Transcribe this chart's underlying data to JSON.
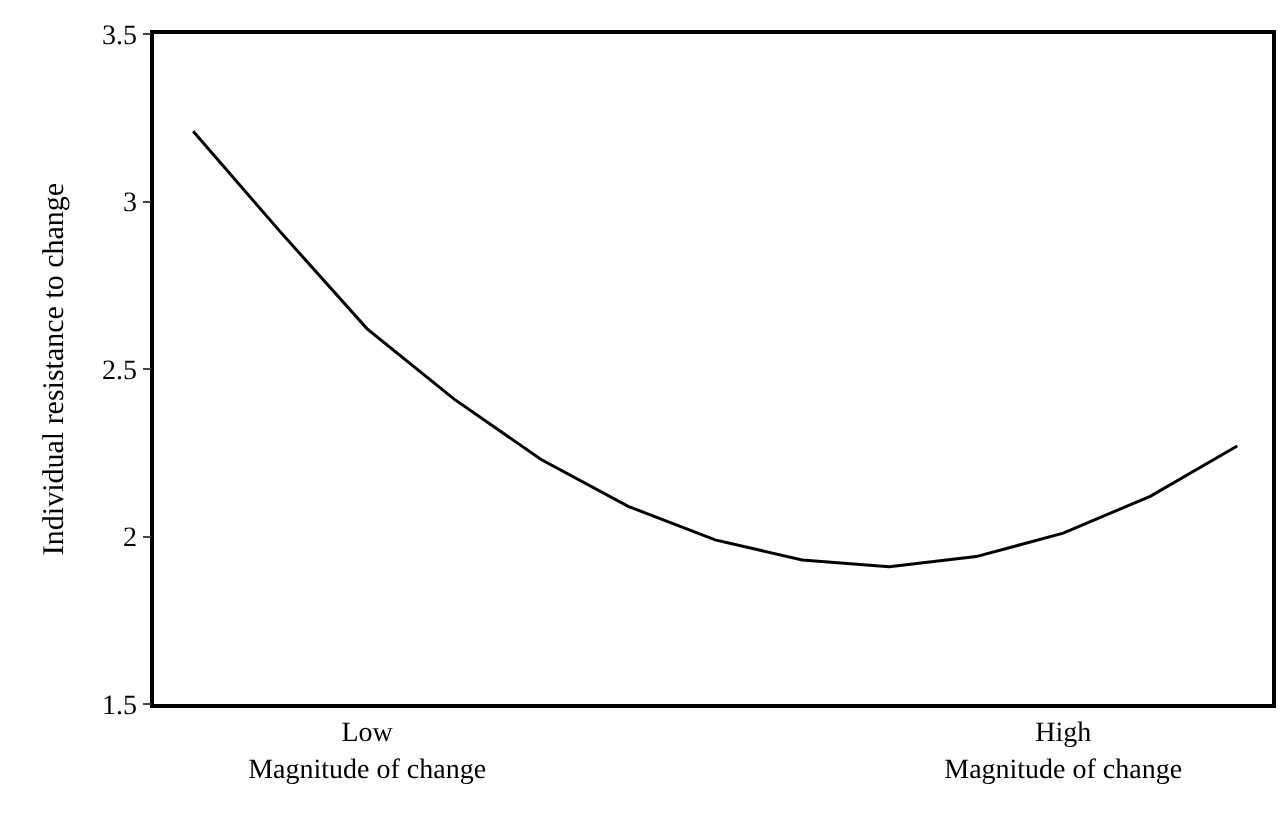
{
  "chart_data": {
    "type": "line",
    "ylabel": "Individual resistance to change",
    "categories": [
      null,
      null,
      "Low\nMagnitude of change",
      null,
      null,
      null,
      null,
      null,
      null,
      null,
      "High\nMagnitude of change",
      null,
      null
    ],
    "series": [
      {
        "color": "#000000",
        "values": [
          3.21,
          2.91,
          2.62,
          2.41,
          2.23,
          2.09,
          1.99,
          1.93,
          1.91,
          1.94,
          2.01,
          2.12,
          2.27
        ]
      }
    ],
    "ylim": [
      1.5,
      3.5
    ],
    "yticks": [
      1.5,
      2,
      2.5,
      3,
      3.5
    ],
    "legend": false,
    "marker": "none",
    "line_style": "solid"
  }
}
